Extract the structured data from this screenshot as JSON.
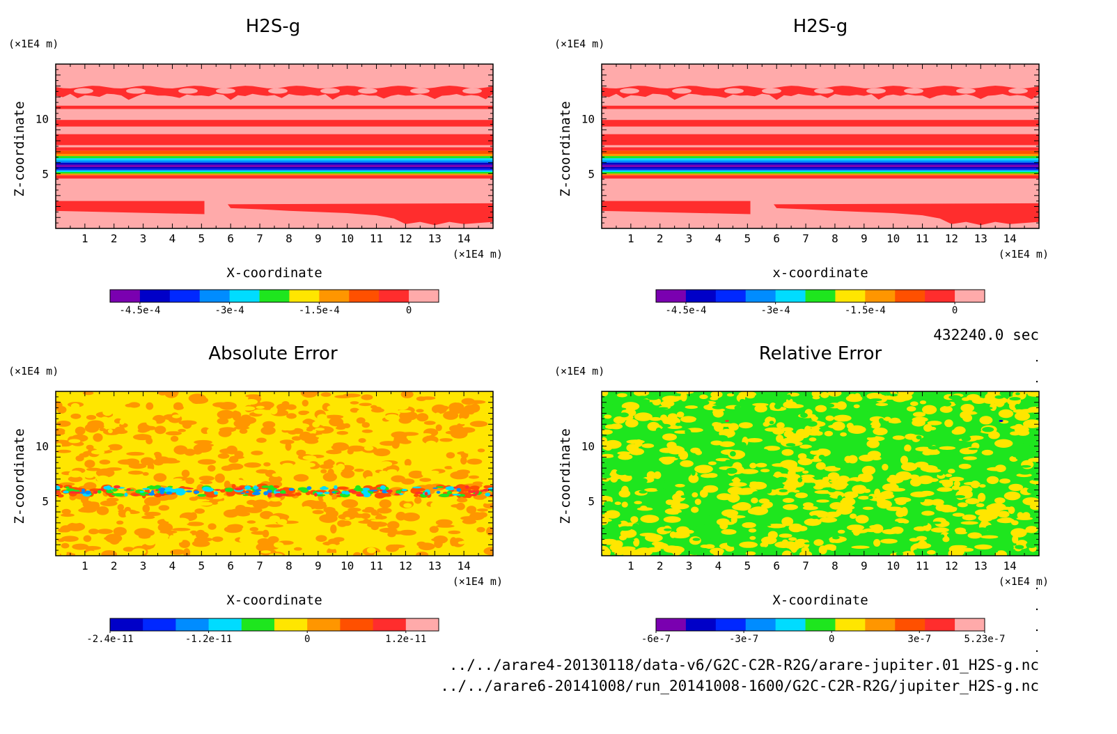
{
  "colors": {
    "H2S": [
      "#7a00b0",
      "#0000c8",
      "#0028ff",
      "#008cff",
      "#00dcff",
      "#1ee61e",
      "#ffe600",
      "#ff9600",
      "#ff5000",
      "#ff2d2d",
      "#ffaaaa"
    ],
    "abs": [
      "#0000c8",
      "#0028ff",
      "#008cff",
      "#00dcff",
      "#1ee61e",
      "#ffe600",
      "#ff9600",
      "#ff5000",
      "#ff2d2d",
      "#ffaaaa"
    ],
    "rel": [
      "#7a00b0",
      "#0000c8",
      "#0028ff",
      "#008cff",
      "#00dcff",
      "#1ee61e",
      "#ffe600",
      "#ff9600",
      "#ff5000",
      "#ff2d2d",
      "#ffaaaa"
    ]
  },
  "meta": {
    "time": "432240.0 sec",
    "file1": "../../arare4-20130118/data-v6/G2C-C2R-R2G/arare-jupiter.01_H2S-g.nc",
    "file2": "../../arare6-20141008/run_20141008-1600/G2C-C2R-R2G/jupiter_H2S-g.nc"
  },
  "chart_data": [
    {
      "type": "heatmap",
      "title": "H2S-g",
      "xlabel": "X-coordinate",
      "ylabel": "Z-coordinate",
      "xunit": "(×1E4 m)",
      "yunit": "(×1E4 m)",
      "xlim": [
        0,
        15
      ],
      "ylim": [
        0,
        15
      ],
      "xticks": [
        "1",
        "2",
        "3",
        "4",
        "5",
        "6",
        "7",
        "8",
        "9",
        "10",
        "11",
        "12",
        "13",
        "14"
      ],
      "yticks": [
        "5",
        "10"
      ],
      "colorbar": {
        "min": -0.0005,
        "max": 5e-05,
        "labels": [
          "-4.5e-4",
          "-3e-4",
          "-1.5e-4",
          "0"
        ],
        "label_values": [
          -0.00045,
          -0.0003,
          -0.00015,
          0
        ]
      },
      "description": "horizontally stratified H2S gas field with depletion layer near z=6"
    },
    {
      "type": "heatmap",
      "title": "H2S-g",
      "xlabel": "x-coordinate",
      "ylabel": "Z-coordinate",
      "xunit": "(×1E4 m)",
      "yunit": "(×1E4 m)",
      "xlim": [
        0,
        15
      ],
      "ylim": [
        0,
        15
      ],
      "xticks": [
        "1",
        "2",
        "3",
        "4",
        "5",
        "6",
        "7",
        "8",
        "9",
        "10",
        "11",
        "12",
        "13",
        "14"
      ],
      "yticks": [
        "5",
        "10"
      ],
      "colorbar": {
        "min": -0.0005,
        "max": 5e-05,
        "labels": [
          "-4.5e-4",
          "-3e-4",
          "-1.5e-4",
          "0"
        ],
        "label_values": [
          -0.00045,
          -0.0003,
          -0.00015,
          0
        ]
      }
    },
    {
      "type": "heatmap",
      "title": "Absolute Error",
      "xlabel": "X-coordinate",
      "ylabel": "Z-coordinate",
      "xunit": "(×1E4 m)",
      "yunit": "(×1E4 m)",
      "xlim": [
        0,
        15
      ],
      "ylim": [
        0,
        15
      ],
      "xticks": [
        "1",
        "2",
        "3",
        "4",
        "5",
        "6",
        "7",
        "8",
        "9",
        "10",
        "11",
        "12",
        "13",
        "14"
      ],
      "yticks": [
        "5",
        "10"
      ],
      "colorbar": {
        "min": -2.4e-11,
        "max": 1.6e-11,
        "labels": [
          "-2.4e-11",
          "-1.2e-11",
          "0",
          "1.2e-11"
        ],
        "label_values": [
          -2.4e-11,
          -1.2e-11,
          0,
          1.2e-11
        ]
      }
    },
    {
      "type": "heatmap",
      "title": "Relative Error",
      "xlabel": "X-coordinate",
      "ylabel": "Z-coordinate",
      "xunit": "(×1E4 m)",
      "yunit": "(×1E4 m)",
      "xlim": [
        0,
        15
      ],
      "ylim": [
        0,
        15
      ],
      "xticks": [
        "1",
        "2",
        "3",
        "4",
        "5",
        "6",
        "7",
        "8",
        "9",
        "10",
        "11",
        "12",
        "13",
        "14"
      ],
      "yticks": [
        "5",
        "10"
      ],
      "colorbar": {
        "min": -6e-07,
        "max": 5.23e-07,
        "labels": [
          "-6e-7",
          "-3e-7",
          "0",
          "3e-7",
          "5.23e-7"
        ],
        "label_values": [
          -6e-07,
          -3e-07,
          0,
          3e-07,
          5.23e-07
        ]
      }
    }
  ]
}
